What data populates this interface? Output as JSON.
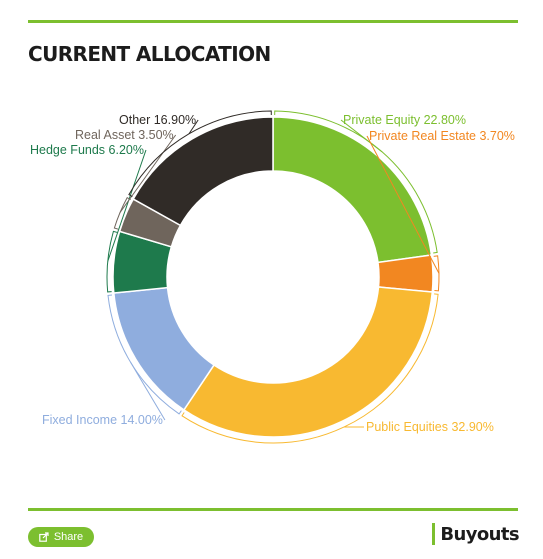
{
  "header": {
    "title": "CURRENT ALLOCATION"
  },
  "footer": {
    "share_label": "Share",
    "brand": "Buyouts",
    "share_icon": "share-icon",
    "accent": "#7cbf2f"
  },
  "chart_data": {
    "type": "pie",
    "donut": true,
    "title": "CURRENT ALLOCATION",
    "start_angle_deg": 0,
    "legend": "none",
    "data_labels": "outside",
    "slices": [
      {
        "label": "Private Equity",
        "value": 22.8,
        "display": "Private Equity 22.80%",
        "color": "#7cbf2f"
      },
      {
        "label": "Private Real Estate",
        "value": 3.7,
        "display": "Private Real Estate 3.70%",
        "color": "#f28721"
      },
      {
        "label": "Public Equities",
        "value": 32.9,
        "display": "Public Equities 32.90%",
        "color": "#f8b931"
      },
      {
        "label": "Fixed Income",
        "value": 14.0,
        "display": "Fixed Income 14.00%",
        "color": "#8fadde"
      },
      {
        "label": "Hedge Funds",
        "value": 6.2,
        "display": "Hedge Funds 6.20%",
        "color": "#1e7a4c"
      },
      {
        "label": "Real Asset",
        "value": 3.5,
        "display": "Real Asset 3.50%",
        "color": "#6f655c"
      },
      {
        "label": "Other",
        "value": 16.9,
        "display": "Other 16.90%",
        "color": "#302b27"
      }
    ]
  }
}
